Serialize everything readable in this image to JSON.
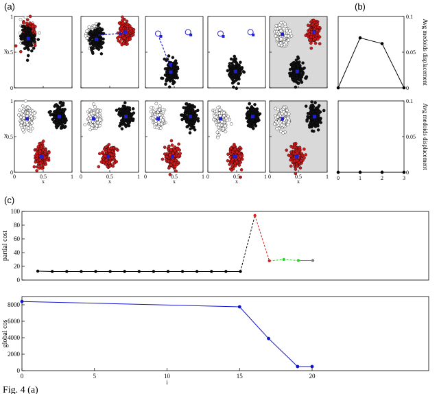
{
  "panel_labels": {
    "a": "(a)",
    "b": "(b)",
    "c": "(c)"
  },
  "caption": "Fig. 4 (a)",
  "chart_data": [
    {
      "type": "scatter",
      "panel": "(a)",
      "xlabel": "x",
      "ylabel": "y",
      "xticks": [
        "0",
        "0.5",
        "1"
      ],
      "yticks": [
        "0",
        "0.5",
        "1"
      ],
      "xlim": [
        0,
        1
      ],
      "ylim": [
        0,
        1
      ],
      "rows": [
        {
          "clusters": [
            [
              {
                "center": [
                  0.22,
                  0.74
                ],
                "color": "white"
              },
              {
                "center": [
                  0.26,
                  0.77
                ],
                "color": "red"
              },
              {
                "center": [
                  0.24,
                  0.69
                ],
                "color": "black"
              }
            ],
            [
              {
                "center": [
                  0.22,
                  0.75
                ],
                "color": "white"
              },
              {
                "center": [
                  0.77,
                  0.78
                ],
                "color": "red"
              },
              {
                "center": [
                  0.27,
                  0.68
                ],
                "color": "black"
              }
            ],
            [
              {
                "center": [
                  0.44,
                  0.22
                ],
                "color": "black"
              }
            ],
            [
              {
                "center": [
                  0.48,
                  0.23
                ],
                "color": "black"
              }
            ],
            [
              {
                "center": [
                  0.22,
                  0.75
                ],
                "color": "white"
              },
              {
                "center": [
                  0.77,
                  0.78
                ],
                "color": "red"
              },
              {
                "center": [
                  0.48,
                  0.23
                ],
                "color": "black"
              }
            ]
          ]
        },
        {
          "clusters": [
            [
              {
                "center": [
                  0.22,
                  0.75
                ],
                "color": "white"
              },
              {
                "center": [
                  0.78,
                  0.78
                ],
                "color": "black"
              },
              {
                "center": [
                  0.47,
                  0.22
                ],
                "color": "red"
              }
            ],
            [
              {
                "center": [
                  0.22,
                  0.75
                ],
                "color": "white"
              },
              {
                "center": [
                  0.78,
                  0.78
                ],
                "color": "black"
              },
              {
                "center": [
                  0.47,
                  0.22
                ],
                "color": "red"
              }
            ],
            [
              {
                "center": [
                  0.22,
                  0.75
                ],
                "color": "white"
              },
              {
                "center": [
                  0.78,
                  0.78
                ],
                "color": "black"
              },
              {
                "center": [
                  0.47,
                  0.22
                ],
                "color": "red"
              }
            ],
            [
              {
                "center": [
                  0.22,
                  0.75
                ],
                "color": "white"
              },
              {
                "center": [
                  0.78,
                  0.78
                ],
                "color": "black"
              },
              {
                "center": [
                  0.47,
                  0.22
                ],
                "color": "red"
              }
            ],
            [
              {
                "center": [
                  0.22,
                  0.75
                ],
                "color": "white"
              },
              {
                "center": [
                  0.78,
                  0.78
                ],
                "color": "black"
              },
              {
                "center": [
                  0.47,
                  0.22
                ],
                "color": "red"
              }
            ]
          ]
        }
      ]
    },
    {
      "type": "line",
      "panel": "(b) top",
      "ylabel": "Avg medoids displacement",
      "x": [
        0,
        1,
        2,
        3
      ],
      "y": [
        0,
        0.07,
        0.062,
        0
      ],
      "xlim": [
        0,
        3
      ],
      "ylim": [
        0,
        0.1
      ],
      "yticks": [
        "0",
        "0.05",
        "0.1"
      ],
      "xticks": [
        "0",
        "1",
        "2",
        "3"
      ]
    },
    {
      "type": "line",
      "panel": "(b) bottom",
      "ylabel": "Avg medoids displacement",
      "x": [
        0,
        1,
        2,
        3
      ],
      "y": [
        0,
        0,
        0,
        0
      ],
      "xlim": [
        0,
        3
      ],
      "ylim": [
        0,
        0.1
      ],
      "yticks": [
        "0",
        "0.05",
        "0.1"
      ],
      "xticks": [
        "0",
        "1",
        "2",
        "3"
      ]
    },
    {
      "type": "line",
      "panel": "(c) top",
      "ylabel": "partial cost",
      "xlim": [
        0,
        20
      ],
      "ylim": [
        0,
        100
      ],
      "yticks": [
        "0",
        "20",
        "40",
        "60",
        "80",
        "100"
      ],
      "series": [
        {
          "color": "#000000",
          "x": [
            1,
            2,
            3,
            4,
            5,
            6,
            7,
            8,
            9,
            10,
            11,
            12,
            13,
            14,
            15
          ],
          "y": [
            13,
            12.5,
            12.5,
            12.5,
            12.5,
            12.5,
            12.5,
            12.5,
            12.5,
            12.5,
            12.5,
            12.5,
            12.5,
            12.5,
            12.5
          ]
        },
        {
          "color": "#000000",
          "dashed": true,
          "x": [
            15,
            16
          ],
          "y": [
            12.5,
            94
          ]
        },
        {
          "color": "#e02020",
          "dashed": true,
          "x": [
            16,
            17
          ],
          "y": [
            94,
            28
          ]
        },
        {
          "color": "#30d030",
          "dashed": true,
          "x": [
            17,
            18,
            19,
            20
          ],
          "y": [
            28,
            30,
            28.5,
            28.5
          ]
        },
        {
          "color": "#808080",
          "dashed": true,
          "x": [
            19,
            20
          ],
          "y": [
            28.5,
            28.5
          ]
        }
      ],
      "marker_colors": [
        "#000000",
        "#000000",
        "#000000",
        "#000000",
        "#000000",
        "#000000",
        "#000000",
        "#000000",
        "#000000",
        "#000000",
        "#000000",
        "#000000",
        "#000000",
        "#000000",
        "#000000",
        "#e02020",
        "#e02020",
        "#30d030",
        "#30d030",
        "#808080"
      ],
      "marker_x": [
        1,
        2,
        3,
        4,
        5,
        6,
        7,
        8,
        9,
        10,
        11,
        12,
        13,
        14,
        15,
        16,
        17,
        18,
        19,
        20
      ],
      "marker_y": [
        13,
        12.5,
        12.5,
        12.5,
        12.5,
        12.5,
        12.5,
        12.5,
        12.5,
        12.5,
        12.5,
        12.5,
        12.5,
        12.5,
        12.5,
        94,
        28,
        30,
        28.5,
        28.5
      ]
    },
    {
      "type": "line",
      "panel": "(c) bottom",
      "ylabel": "global cos",
      "xlabel": "i",
      "xlim": [
        0,
        20
      ],
      "ylim": [
        0,
        9000
      ],
      "yticks": [
        "0",
        "2000",
        "4000",
        "6000",
        "8000"
      ],
      "xticks": [
        "0",
        "5",
        "10",
        "15",
        "20"
      ],
      "x": [
        0,
        15,
        17,
        19,
        20
      ],
      "y": [
        8400,
        7750,
        3900,
        500,
        500
      ],
      "color": "#1010d0"
    }
  ]
}
